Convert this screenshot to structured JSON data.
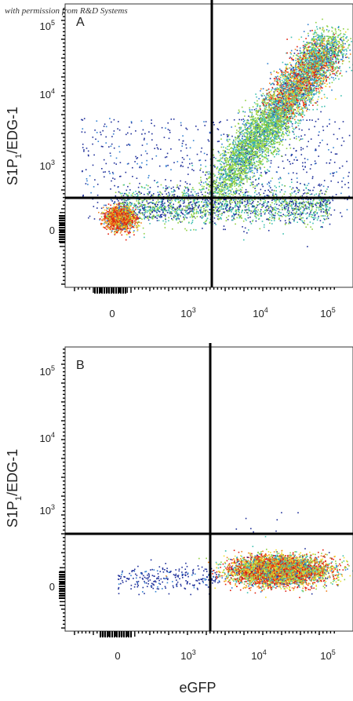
{
  "watermark": "with permission from R&D Systems",
  "chart_data": [
    {
      "type": "scatter",
      "panel_label": "A",
      "xlabel": "",
      "ylabel": "S1P1/EDG-1",
      "ylabel_main": "S1P",
      "ylabel_sub": "1",
      "ylabel_tail": "/EDG-1",
      "x_ticks": [
        {
          "label": "0",
          "value": 0
        },
        {
          "base": "10",
          "exp": "3",
          "value": 1000
        },
        {
          "base": "10",
          "exp": "4",
          "value": 10000
        },
        {
          "base": "10",
          "exp": "5",
          "value": 100000
        }
      ],
      "y_ticks": [
        {
          "label": "0",
          "value": 0
        },
        {
          "base": "10",
          "exp": "3",
          "value": 1000
        },
        {
          "base": "10",
          "exp": "4",
          "value": 10000
        },
        {
          "base": "10",
          "exp": "5",
          "value": 100000
        }
      ],
      "x_scale": "biexponential",
      "y_scale": "biexponential",
      "xlim": [
        -600,
        180000
      ],
      "ylim": [
        -600,
        180000
      ],
      "quadrant_gate": {
        "x": 2000,
        "y": 400
      },
      "populations": [
        {
          "description": "double-negative dense cluster",
          "center": [
            120,
            150
          ],
          "density": "high"
        },
        {
          "description": "diagonal double-positive population",
          "from": [
            2000,
            400
          ],
          "to": [
            60000,
            18000
          ],
          "density": "high"
        }
      ],
      "colors": [
        "#1f2f9a",
        "#2f7fd0",
        "#3fc0b0",
        "#8fd040",
        "#f0e030",
        "#f08020",
        "#e02010"
      ]
    },
    {
      "type": "scatter",
      "panel_label": "B",
      "xlabel": "eGFP",
      "ylabel": "S1P1/EDG-1",
      "ylabel_main": "S1P",
      "ylabel_sub": "1",
      "ylabel_tail": "/EDG-1",
      "x_ticks": [
        {
          "label": "0",
          "value": 0
        },
        {
          "base": "10",
          "exp": "3",
          "value": 1000
        },
        {
          "base": "10",
          "exp": "4",
          "value": 10000
        },
        {
          "base": "10",
          "exp": "5",
          "value": 100000
        }
      ],
      "y_ticks": [
        {
          "label": "0",
          "value": 0
        },
        {
          "base": "10",
          "exp": "3",
          "value": 1000
        },
        {
          "base": "10",
          "exp": "4",
          "value": 10000
        },
        {
          "base": "10",
          "exp": "5",
          "value": 100000
        }
      ],
      "x_scale": "biexponential",
      "y_scale": "biexponential",
      "xlim": [
        -600,
        180000
      ],
      "ylim": [
        -600,
        180000
      ],
      "quadrant_gate": {
        "x": 2000,
        "y": 500
      },
      "populations": [
        {
          "description": "eGFP-positive, S1P1-negative cluster",
          "center": [
            25000,
            60
          ],
          "density": "high"
        },
        {
          "description": "sparse tail toward eGFP-negative",
          "from": [
            100,
            80
          ],
          "to": [
            2000,
            90
          ],
          "density": "low"
        }
      ],
      "colors": [
        "#1f2f9a",
        "#2f7fd0",
        "#3fc0b0",
        "#8fd040",
        "#f0e030",
        "#f08020",
        "#e02010"
      ]
    }
  ]
}
